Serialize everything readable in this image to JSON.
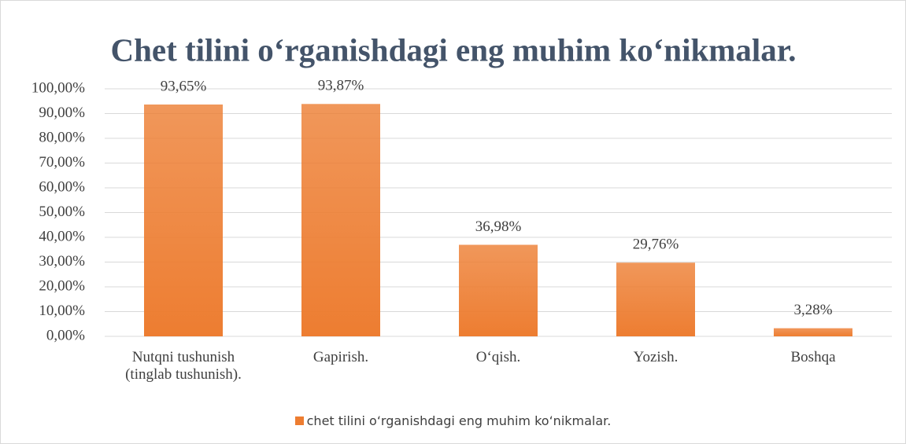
{
  "chart_data": {
    "type": "bar",
    "title": "Chet tilini o‘rganishdagi eng muhim ko‘nikmalar.",
    "categories": [
      "Nutqni tushunish (tinglab tushunish).",
      "Gapirish.",
      "O‘qish.",
      "Yozish.",
      "Boshqa"
    ],
    "series": [
      {
        "name": "chet tilini o‘rganishdagi eng muhim ko‘nikmalar.",
        "color": "#ed7d31",
        "values": [
          93.65,
          93.87,
          36.98,
          29.76,
          3.28
        ],
        "value_labels": [
          "93,65%",
          "93,87%",
          "36,98%",
          "29,76%",
          "3,28%"
        ]
      }
    ],
    "ylim": [
      0,
      100
    ],
    "yticks": [
      {
        "value": 0,
        "label": "0,00%"
      },
      {
        "value": 10,
        "label": "10,00%"
      },
      {
        "value": 20,
        "label": "20,00%"
      },
      {
        "value": 30,
        "label": "30,00%"
      },
      {
        "value": 40,
        "label": "40,00%"
      },
      {
        "value": 50,
        "label": "50,00%"
      },
      {
        "value": 60,
        "label": "60,00%"
      },
      {
        "value": 70,
        "label": "70,00%"
      },
      {
        "value": 80,
        "label": "80,00%"
      },
      {
        "value": 90,
        "label": "90,00%"
      },
      {
        "value": 100,
        "label": "100,00%"
      }
    ],
    "grid": true,
    "legend": "bottom"
  }
}
